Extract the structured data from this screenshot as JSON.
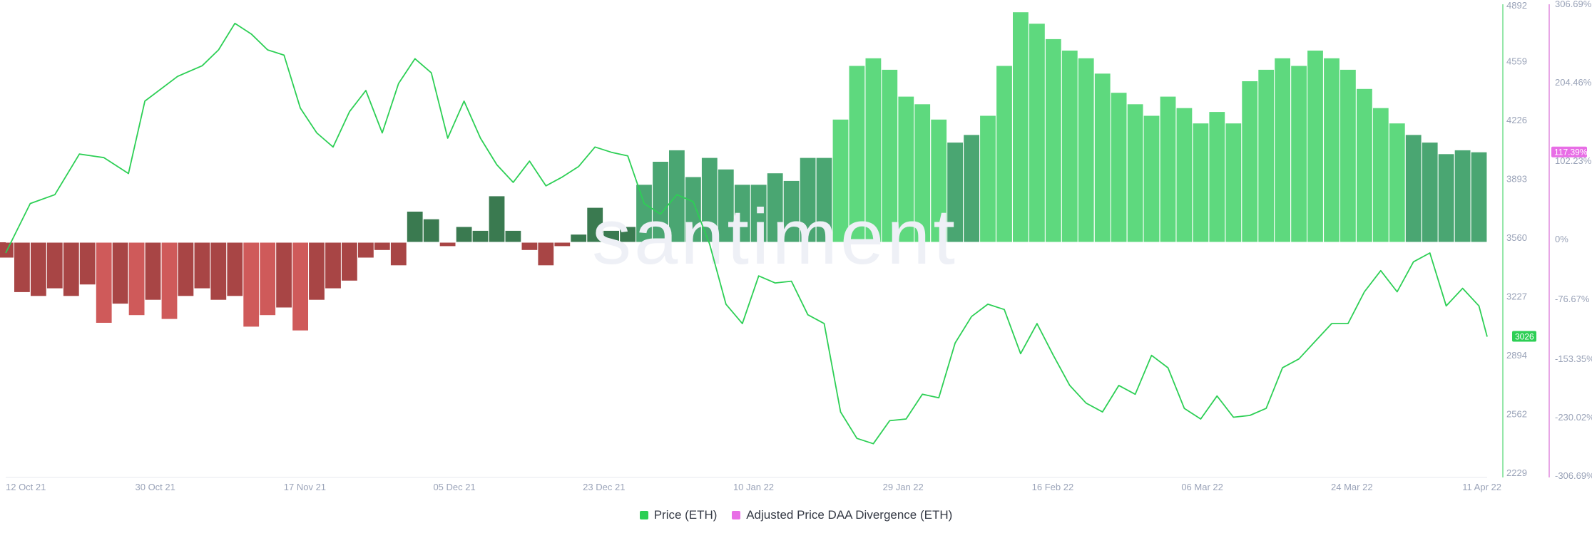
{
  "chart_data": {
    "type": "bar+line",
    "watermark": "santiment",
    "x_tick_labels": [
      "12 Oct 21",
      "30 Oct 21",
      "17 Nov 21",
      "05 Dec 21",
      "23 Dec 21",
      "10 Jan 22",
      "29 Jan 22",
      "16 Feb 22",
      "06 Mar 22",
      "24 Mar 22",
      "11 Apr 22"
    ],
    "price_axis": {
      "ticks": [
        "4892",
        "4559",
        "4226",
        "3893",
        "3560",
        "3227",
        "2894",
        "2562",
        "2229"
      ],
      "ylim": [
        2229,
        4892
      ],
      "current_label": "3026",
      "current_value": 3026
    },
    "divergence_axis": {
      "ticks": [
        "306.69%",
        "204.46%",
        "102.23%",
        "0%",
        "-76.67%",
        "-153.35%",
        "-230.02%",
        "-306.69%"
      ],
      "ylim": [
        -306.69,
        306.69
      ],
      "current_label": "117.39%",
      "current_value": 117.39
    },
    "colors": {
      "price_line": "#2dcf55",
      "price_badge": "#2dcf55",
      "divergence_badge": "#e86ee6",
      "right_axis_line": "#d96ad6",
      "bar_bright": "#5ed97e",
      "bar_mid": "#4aa672",
      "bar_dark": "#3a7a50",
      "bar_red": "#a84545",
      "bar_red_bright": "#cf5a5a"
    },
    "series": [
      {
        "name": "Price (ETH)",
        "kind": "line",
        "points": [
          [
            "2021-10-12",
            3500
          ],
          [
            "2021-10-15",
            3780
          ],
          [
            "2021-10-18",
            3830
          ],
          [
            "2021-10-21",
            4060
          ],
          [
            "2021-10-24",
            4040
          ],
          [
            "2021-10-27",
            3950
          ],
          [
            "2021-10-29",
            4360
          ],
          [
            "2021-11-02",
            4500
          ],
          [
            "2021-11-05",
            4560
          ],
          [
            "2021-11-07",
            4650
          ],
          [
            "2021-11-09",
            4800
          ],
          [
            "2021-11-11",
            4740
          ],
          [
            "2021-11-13",
            4650
          ],
          [
            "2021-11-15",
            4620
          ],
          [
            "2021-11-17",
            4320
          ],
          [
            "2021-11-19",
            4180
          ],
          [
            "2021-11-21",
            4100
          ],
          [
            "2021-11-23",
            4300
          ],
          [
            "2021-11-25",
            4420
          ],
          [
            "2021-11-27",
            4180
          ],
          [
            "2021-11-29",
            4460
          ],
          [
            "2021-12-01",
            4600
          ],
          [
            "2021-12-03",
            4520
          ],
          [
            "2021-12-05",
            4150
          ],
          [
            "2021-12-07",
            4360
          ],
          [
            "2021-12-09",
            4150
          ],
          [
            "2021-12-11",
            4000
          ],
          [
            "2021-12-13",
            3900
          ],
          [
            "2021-12-15",
            4020
          ],
          [
            "2021-12-17",
            3880
          ],
          [
            "2021-12-19",
            3930
          ],
          [
            "2021-12-21",
            3990
          ],
          [
            "2021-12-23",
            4100
          ],
          [
            "2021-12-25",
            4070
          ],
          [
            "2021-12-27",
            4050
          ],
          [
            "2021-12-29",
            3780
          ],
          [
            "2021-12-31",
            3720
          ],
          [
            "2022-01-02",
            3830
          ],
          [
            "2022-01-04",
            3790
          ],
          [
            "2022-01-06",
            3550
          ],
          [
            "2022-01-08",
            3210
          ],
          [
            "2022-01-10",
            3100
          ],
          [
            "2022-01-12",
            3370
          ],
          [
            "2022-01-14",
            3330
          ],
          [
            "2022-01-16",
            3340
          ],
          [
            "2022-01-18",
            3150
          ],
          [
            "2022-01-20",
            3100
          ],
          [
            "2022-01-22",
            2600
          ],
          [
            "2022-01-24",
            2450
          ],
          [
            "2022-01-26",
            2420
          ],
          [
            "2022-01-28",
            2550
          ],
          [
            "2022-01-30",
            2560
          ],
          [
            "2022-02-01",
            2700
          ],
          [
            "2022-02-03",
            2680
          ],
          [
            "2022-02-05",
            2990
          ],
          [
            "2022-02-07",
            3140
          ],
          [
            "2022-02-09",
            3210
          ],
          [
            "2022-02-11",
            3180
          ],
          [
            "2022-02-13",
            2930
          ],
          [
            "2022-02-15",
            3100
          ],
          [
            "2022-02-17",
            2920
          ],
          [
            "2022-02-19",
            2750
          ],
          [
            "2022-02-21",
            2650
          ],
          [
            "2022-02-23",
            2600
          ],
          [
            "2022-02-25",
            2750
          ],
          [
            "2022-02-27",
            2700
          ],
          [
            "2022-03-01",
            2920
          ],
          [
            "2022-03-03",
            2850
          ],
          [
            "2022-03-05",
            2620
          ],
          [
            "2022-03-07",
            2560
          ],
          [
            "2022-03-09",
            2690
          ],
          [
            "2022-03-11",
            2570
          ],
          [
            "2022-03-13",
            2580
          ],
          [
            "2022-03-15",
            2620
          ],
          [
            "2022-03-17",
            2850
          ],
          [
            "2022-03-19",
            2900
          ],
          [
            "2022-03-21",
            3000
          ],
          [
            "2022-03-23",
            3100
          ],
          [
            "2022-03-25",
            3100
          ],
          [
            "2022-03-27",
            3280
          ],
          [
            "2022-03-29",
            3400
          ],
          [
            "2022-03-31",
            3280
          ],
          [
            "2022-04-02",
            3450
          ],
          [
            "2022-04-04",
            3500
          ],
          [
            "2022-04-06",
            3200
          ],
          [
            "2022-04-08",
            3300
          ],
          [
            "2022-04-10",
            3200
          ],
          [
            "2022-04-11",
            3026
          ]
        ]
      },
      {
        "name": "Adjusted Price DAA Divergence (ETH)",
        "kind": "bar",
        "points": [
          [
            "2021-10-12",
            -20
          ],
          [
            "2021-10-14",
            -65
          ],
          [
            "2021-10-16",
            -70
          ],
          [
            "2021-10-18",
            -60
          ],
          [
            "2021-10-20",
            -70
          ],
          [
            "2021-10-22",
            -55
          ],
          [
            "2021-10-24",
            -105
          ],
          [
            "2021-10-26",
            -80
          ],
          [
            "2021-10-28",
            -95
          ],
          [
            "2021-10-30",
            -75
          ],
          [
            "2021-11-01",
            -100
          ],
          [
            "2021-11-03",
            -70
          ],
          [
            "2021-11-05",
            -60
          ],
          [
            "2021-11-07",
            -75
          ],
          [
            "2021-11-09",
            -70
          ],
          [
            "2021-11-11",
            -110
          ],
          [
            "2021-11-13",
            -95
          ],
          [
            "2021-11-15",
            -85
          ],
          [
            "2021-11-17",
            -115
          ],
          [
            "2021-11-19",
            -75
          ],
          [
            "2021-11-21",
            -60
          ],
          [
            "2021-11-23",
            -50
          ],
          [
            "2021-11-25",
            -20
          ],
          [
            "2021-11-27",
            -10
          ],
          [
            "2021-11-29",
            -30
          ],
          [
            "2021-12-01",
            40
          ],
          [
            "2021-12-03",
            30
          ],
          [
            "2021-12-05",
            -5
          ],
          [
            "2021-12-07",
            20
          ],
          [
            "2021-12-09",
            15
          ],
          [
            "2021-12-11",
            60
          ],
          [
            "2021-12-13",
            15
          ],
          [
            "2021-12-15",
            -10
          ],
          [
            "2021-12-17",
            -30
          ],
          [
            "2021-12-19",
            -5
          ],
          [
            "2021-12-21",
            10
          ],
          [
            "2021-12-23",
            45
          ],
          [
            "2021-12-25",
            15
          ],
          [
            "2021-12-27",
            20
          ],
          [
            "2021-12-29",
            75
          ],
          [
            "2021-12-31",
            105
          ],
          [
            "2022-01-02",
            120
          ],
          [
            "2022-01-04",
            85
          ],
          [
            "2022-01-06",
            110
          ],
          [
            "2022-01-08",
            95
          ],
          [
            "2022-01-10",
            75
          ],
          [
            "2022-01-12",
            75
          ],
          [
            "2022-01-14",
            90
          ],
          [
            "2022-01-16",
            80
          ],
          [
            "2022-01-18",
            110
          ],
          [
            "2022-01-20",
            110
          ],
          [
            "2022-01-22",
            160
          ],
          [
            "2022-01-24",
            230
          ],
          [
            "2022-01-26",
            240
          ],
          [
            "2022-01-28",
            225
          ],
          [
            "2022-01-30",
            190
          ],
          [
            "2022-02-01",
            180
          ],
          [
            "2022-02-03",
            160
          ],
          [
            "2022-02-05",
            130
          ],
          [
            "2022-02-07",
            140
          ],
          [
            "2022-02-09",
            165
          ],
          [
            "2022-02-11",
            230
          ],
          [
            "2022-02-13",
            300
          ],
          [
            "2022-02-15",
            285
          ],
          [
            "2022-02-17",
            265
          ],
          [
            "2022-02-19",
            250
          ],
          [
            "2022-02-21",
            240
          ],
          [
            "2022-02-23",
            220
          ],
          [
            "2022-02-25",
            195
          ],
          [
            "2022-02-27",
            180
          ],
          [
            "2022-03-01",
            165
          ],
          [
            "2022-03-03",
            190
          ],
          [
            "2022-03-05",
            175
          ],
          [
            "2022-03-07",
            155
          ],
          [
            "2022-03-09",
            170
          ],
          [
            "2022-03-11",
            155
          ],
          [
            "2022-03-13",
            210
          ],
          [
            "2022-03-15",
            225
          ],
          [
            "2022-03-17",
            240
          ],
          [
            "2022-03-19",
            230
          ],
          [
            "2022-03-21",
            250
          ],
          [
            "2022-03-23",
            240
          ],
          [
            "2022-03-25",
            225
          ],
          [
            "2022-03-27",
            200
          ],
          [
            "2022-03-29",
            175
          ],
          [
            "2022-03-31",
            155
          ],
          [
            "2022-04-02",
            140
          ],
          [
            "2022-04-04",
            130
          ],
          [
            "2022-04-06",
            115
          ],
          [
            "2022-04-08",
            120
          ],
          [
            "2022-04-10",
            117.39
          ]
        ]
      }
    ],
    "legend": [
      {
        "label": "Price (ETH)",
        "color": "#2dcf55"
      },
      {
        "label": "Adjusted Price DAA Divergence (ETH)",
        "color": "#e86ee6"
      }
    ]
  }
}
